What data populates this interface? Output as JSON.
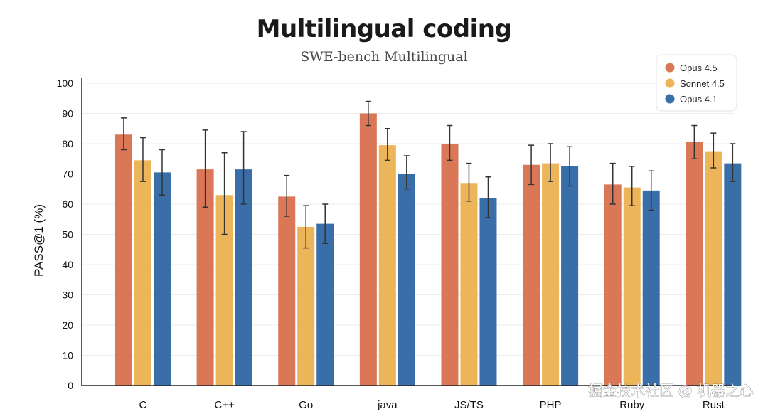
{
  "chart_data": {
    "type": "bar",
    "title": "Multilingual coding",
    "subtitle": "SWE-bench Multilingual",
    "xlabel": "",
    "ylabel": "PASS@1 (%)",
    "ylim": [
      0,
      100
    ],
    "yticks": [
      0,
      10,
      20,
      30,
      40,
      50,
      60,
      70,
      80,
      90,
      100
    ],
    "grid": true,
    "legend_position": "top-right",
    "categories": [
      "C",
      "C++",
      "Go",
      "java",
      "JS/TS",
      "PHP",
      "Ruby",
      "Rust"
    ],
    "series": [
      {
        "name": "Opus 4.5",
        "color": "#D97757",
        "values": [
          83,
          71.5,
          62.5,
          90,
          80,
          73,
          66.5,
          80.5
        ],
        "error_low": [
          78,
          59,
          56,
          86,
          74.5,
          66.5,
          60,
          75
        ],
        "error_high": [
          88.5,
          84.5,
          69.5,
          94,
          86,
          79.5,
          73.5,
          86
        ]
      },
      {
        "name": "Sonnet 4.5",
        "color": "#EDB55A",
        "values": [
          74.5,
          63,
          52.5,
          79.5,
          67,
          73.5,
          65.5,
          77.5
        ],
        "error_low": [
          67.5,
          50,
          45.5,
          74.5,
          61,
          67.5,
          59.5,
          72
        ],
        "error_high": [
          82,
          77,
          59.5,
          85,
          73.5,
          80,
          72.5,
          83.5
        ]
      },
      {
        "name": "Opus 4.1",
        "color": "#3A6EA8",
        "values": [
          70.5,
          71.5,
          53.5,
          70,
          62,
          72.5,
          64.5,
          73.5
        ],
        "error_low": [
          63,
          60,
          47,
          65,
          55.5,
          66,
          58,
          67.5
        ],
        "error_high": [
          78,
          84,
          60,
          76,
          69,
          79,
          71,
          80
        ]
      }
    ]
  },
  "watermark": "掘金技术社区 @ 机器之心"
}
